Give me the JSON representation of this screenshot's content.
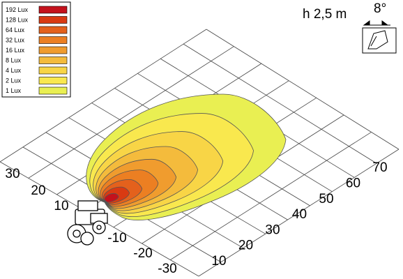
{
  "legend": [
    {
      "label": "192 Lux",
      "color": "#c4121c"
    },
    {
      "label": "128 Lux",
      "color": "#d93a12"
    },
    {
      "label": "64 Lux",
      "color": "#e4611c"
    },
    {
      "label": "32 Lux",
      "color": "#ec7f22"
    },
    {
      "label": "16 Lux",
      "color": "#f09c2e"
    },
    {
      "label": "8 Lux",
      "color": "#f4bb3c"
    },
    {
      "label": "4 Lux",
      "color": "#f8d546"
    },
    {
      "label": "2 Lux",
      "color": "#f9e84e"
    },
    {
      "label": "1 Lux",
      "color": "#e9ef52"
    }
  ],
  "mounting": {
    "height": "h 2,5 m",
    "angle": "8°"
  },
  "left_axis": {
    "labels": [
      30,
      20,
      10,
      -10,
      -20,
      -30
    ]
  },
  "right_axis": {
    "labels": [
      10,
      20,
      30,
      40,
      50,
      60,
      70
    ]
  }
}
